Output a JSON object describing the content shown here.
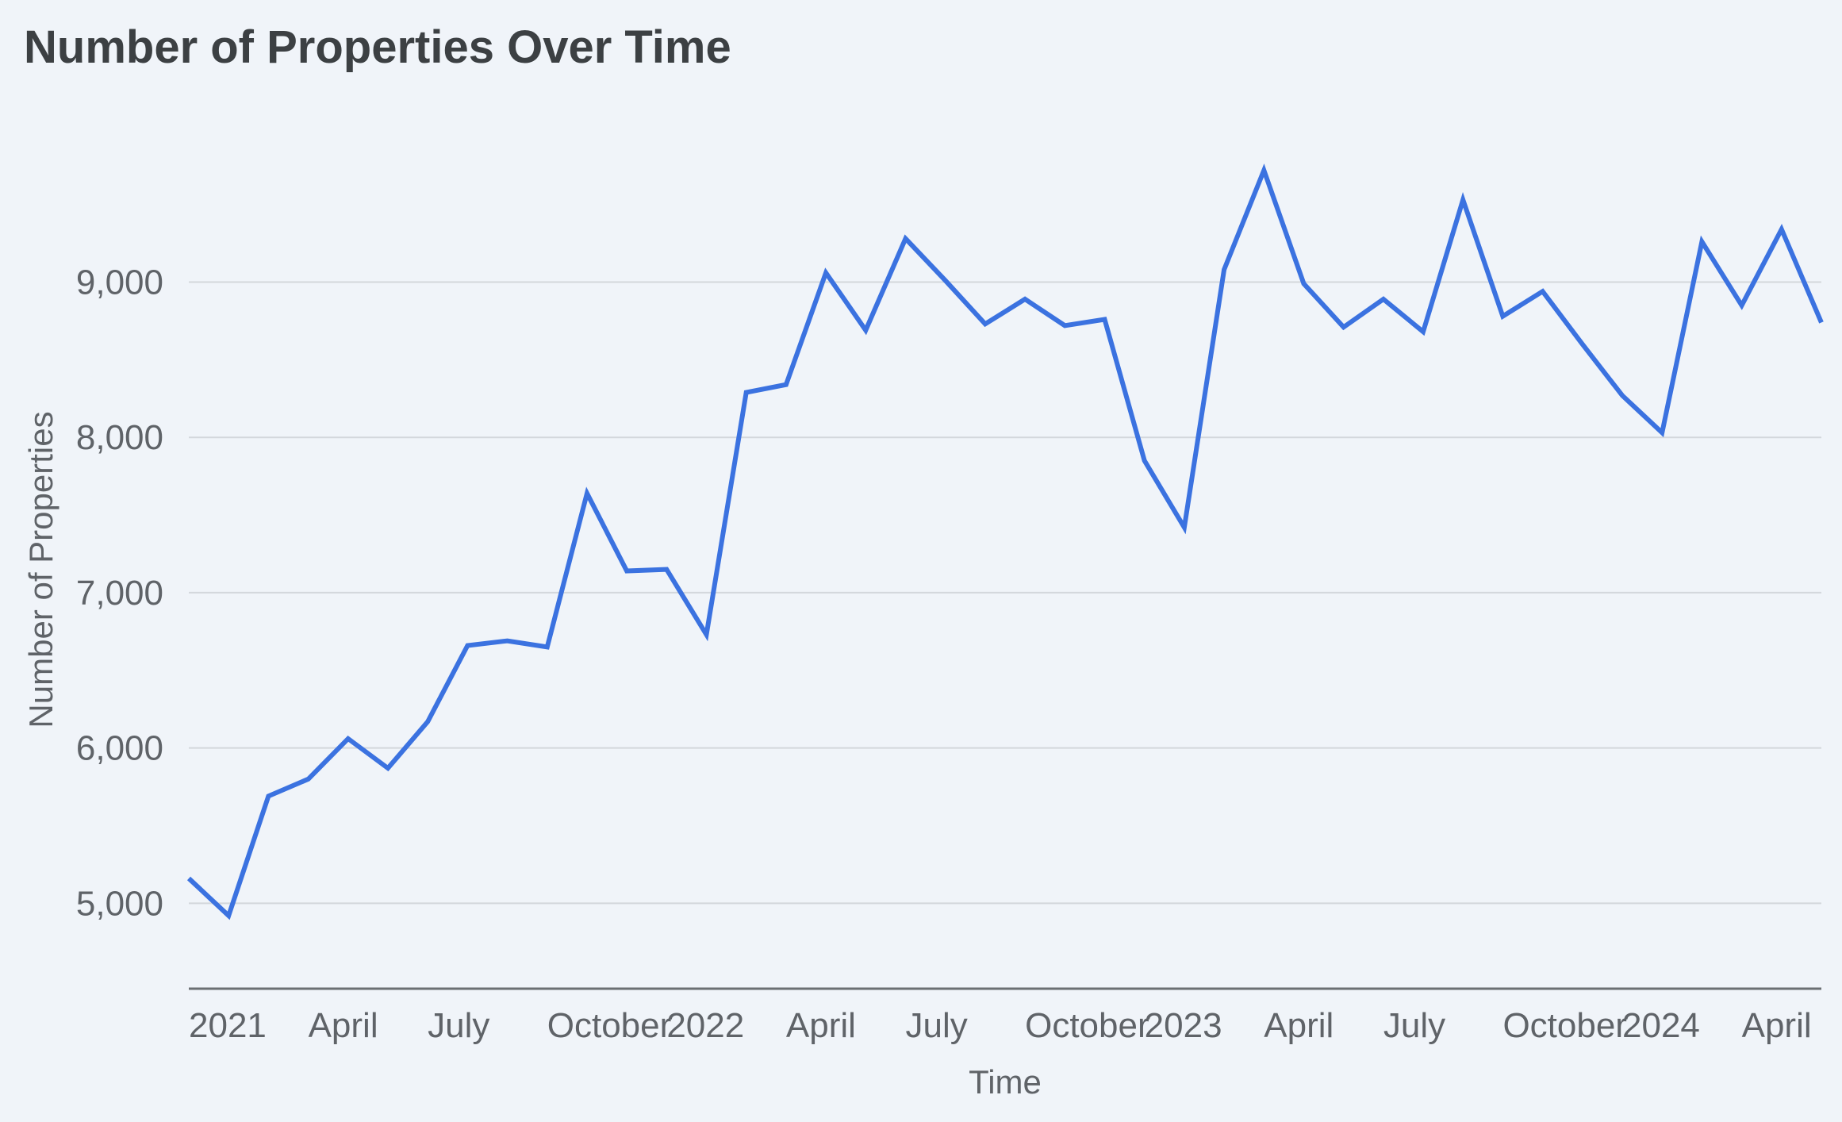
{
  "chart_data": {
    "type": "line",
    "title": "Number of Properties Over Time",
    "xlabel": "Time",
    "ylabel": "Number of Properties",
    "ylim": [
      4450,
      10050
    ],
    "yticks": [
      5000,
      6000,
      7000,
      8000,
      9000
    ],
    "ytick_labels": [
      "5,000",
      "6,000",
      "7,000",
      "8,000",
      "9,000"
    ],
    "xticks": [
      {
        "label": "2021",
        "x": "2021-01"
      },
      {
        "label": "April",
        "x": "2021-04"
      },
      {
        "label": "July",
        "x": "2021-07"
      },
      {
        "label": "October",
        "x": "2021-10"
      },
      {
        "label": "2022",
        "x": "2022-01"
      },
      {
        "label": "April",
        "x": "2022-04"
      },
      {
        "label": "July",
        "x": "2022-07"
      },
      {
        "label": "October",
        "x": "2022-10"
      },
      {
        "label": "2023",
        "x": "2023-01"
      },
      {
        "label": "April",
        "x": "2023-04"
      },
      {
        "label": "July",
        "x": "2023-07"
      },
      {
        "label": "October",
        "x": "2023-10"
      },
      {
        "label": "2024",
        "x": "2024-01"
      },
      {
        "label": "April",
        "x": "2024-04"
      }
    ],
    "grid": true,
    "line_color": "#3b72e0",
    "series": [
      {
        "x": [
          "2021-01",
          "2021-02",
          "2021-03",
          "2021-04",
          "2021-05",
          "2021-06",
          "2021-07",
          "2021-08",
          "2021-09",
          "2021-10",
          "2021-11",
          "2021-12",
          "2022-01",
          "2022-02",
          "2022-03",
          "2022-04",
          "2022-05",
          "2022-06",
          "2022-07",
          "2022-08",
          "2022-09",
          "2022-10",
          "2022-11",
          "2022-12",
          "2023-01",
          "2023-02",
          "2023-03",
          "2023-04",
          "2023-05",
          "2023-06",
          "2023-07",
          "2023-08",
          "2023-09",
          "2023-10",
          "2023-11",
          "2023-12",
          "2024-01",
          "2024-02",
          "2024-03",
          "2024-04",
          "2024-05",
          "2024-06"
        ],
        "values": [
          5160,
          4920,
          5690,
          5800,
          6060,
          5870,
          6170,
          6660,
          6690,
          6650,
          7640,
          7140,
          7150,
          6730,
          8290,
          8340,
          9060,
          8690,
          9280,
          9010,
          8730,
          8890,
          8720,
          8760,
          7850,
          7420,
          9080,
          9720,
          8990,
          8710,
          8890,
          8680,
          9530,
          8780,
          8940,
          8600,
          8270,
          8030,
          9260,
          8850,
          9340,
          8740
        ]
      }
    ]
  }
}
